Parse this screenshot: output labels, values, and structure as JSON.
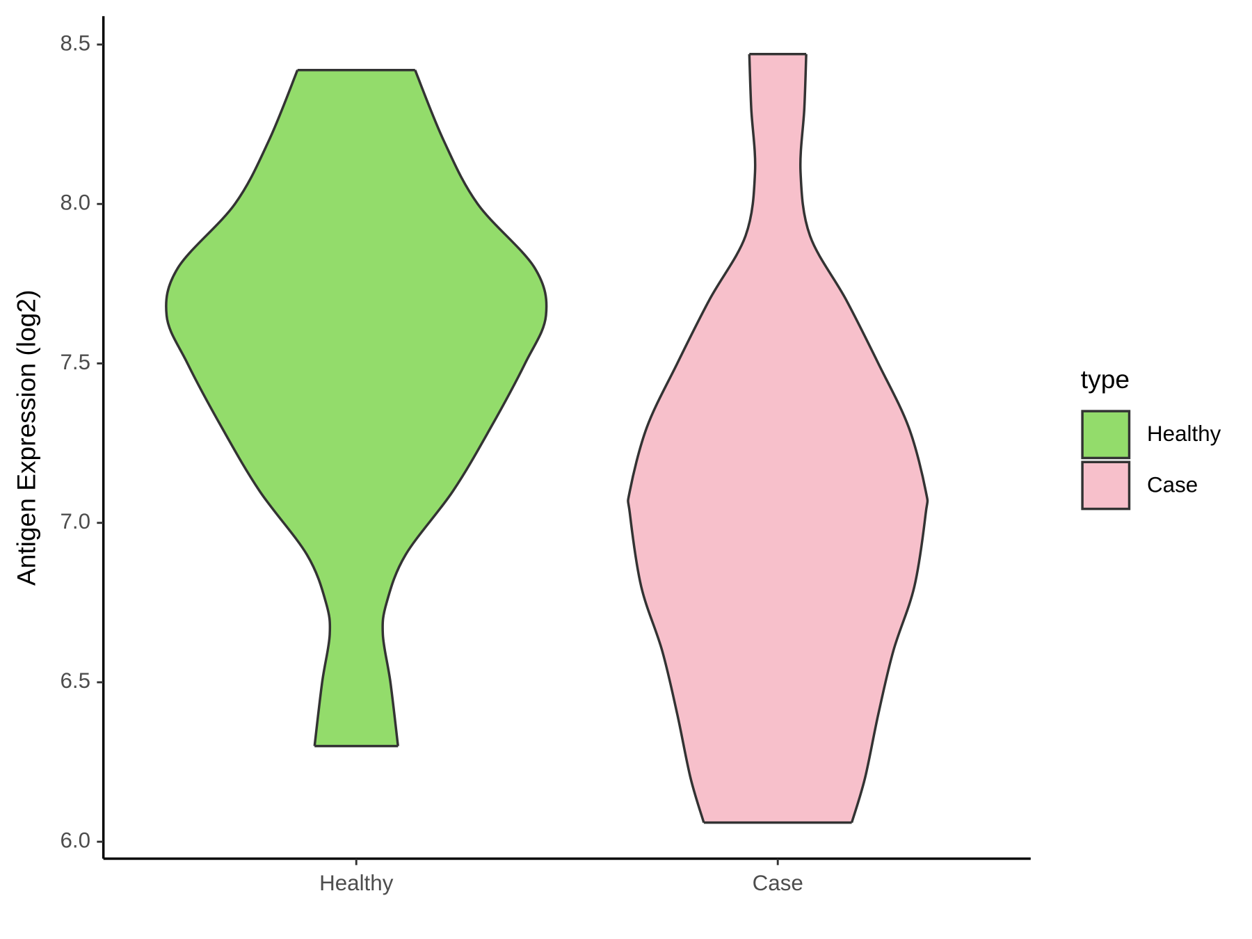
{
  "chart_data": {
    "type": "violin",
    "y_label": "Antigen Expression (log2)",
    "categories": [
      "Healthy",
      "Case"
    ],
    "legend_title": "type",
    "ylim": [
      5.947,
      8.589
    ],
    "yticks": [
      {
        "value": 6,
        "label": "6.0"
      },
      6.5,
      {
        "value": 7,
        "label": "7.0"
      },
      7.5,
      {
        "value": 8,
        "label": "8.0"
      },
      8.5
    ],
    "series": [
      {
        "name": "Healthy",
        "color": "#93dc6b",
        "y": [
          8.42,
          8.2,
          8.0,
          7.8,
          7.65,
          7.5,
          7.3,
          7.1,
          6.9,
          6.75,
          6.65,
          6.5,
          6.3
        ],
        "density": [
          0.31,
          0.46,
          0.64,
          0.94,
          1.0,
          0.89,
          0.71,
          0.51,
          0.26,
          0.16,
          0.14,
          0.18,
          0.22
        ]
      },
      {
        "name": "Case",
        "color": "#f7c0cb",
        "y": [
          8.47,
          8.3,
          8.1,
          7.9,
          7.7,
          7.5,
          7.3,
          7.1,
          7.03,
          6.8,
          6.6,
          6.4,
          6.2,
          6.06
        ],
        "density": [
          0.15,
          0.14,
          0.12,
          0.17,
          0.36,
          0.53,
          0.69,
          0.78,
          0.78,
          0.72,
          0.61,
          0.53,
          0.46,
          0.39
        ]
      }
    ]
  }
}
